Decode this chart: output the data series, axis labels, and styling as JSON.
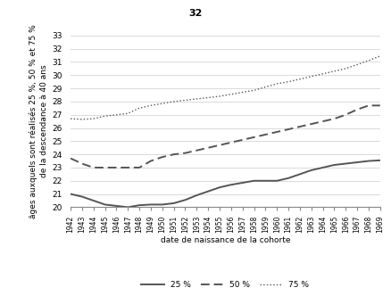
{
  "years": [
    1942,
    1943,
    1944,
    1945,
    1946,
    1947,
    1948,
    1949,
    1950,
    1951,
    1952,
    1953,
    1954,
    1955,
    1956,
    1957,
    1958,
    1959,
    1960,
    1961,
    1962,
    1963,
    1964,
    1965,
    1966,
    1967,
    1968,
    1969
  ],
  "p25": [
    21.0,
    20.8,
    20.5,
    20.2,
    20.1,
    20.0,
    20.15,
    20.2,
    20.2,
    20.3,
    20.55,
    20.9,
    21.2,
    21.5,
    21.7,
    21.85,
    22.0,
    22.0,
    22.0,
    22.2,
    22.5,
    22.8,
    23.0,
    23.2,
    23.3,
    23.4,
    23.5,
    23.55
  ],
  "p50": [
    23.7,
    23.3,
    23.0,
    23.0,
    23.0,
    23.0,
    23.0,
    23.5,
    23.8,
    24.0,
    24.1,
    24.3,
    24.5,
    24.7,
    24.9,
    25.1,
    25.3,
    25.5,
    25.7,
    25.9,
    26.1,
    26.3,
    26.5,
    26.7,
    27.0,
    27.4,
    27.7,
    27.7
  ],
  "p75": [
    26.7,
    26.65,
    26.7,
    26.9,
    27.0,
    27.1,
    27.5,
    27.7,
    27.85,
    28.0,
    28.1,
    28.2,
    28.3,
    28.4,
    28.55,
    28.7,
    28.85,
    29.1,
    29.35,
    29.5,
    29.7,
    29.9,
    30.1,
    30.3,
    30.5,
    30.8,
    31.1,
    31.45
  ],
  "ylim": [
    20,
    33
  ],
  "yticks": [
    20,
    21,
    22,
    23,
    24,
    25,
    26,
    27,
    28,
    29,
    30,
    31,
    32,
    33
  ],
  "xlabel": "date de naissance de la cohorte",
  "ylabel_line1": "âges auxquels sont réalisés 25 %, 50 % et 75 %",
  "ylabel_line2": "de la descendance à 40 ans",
  "legend_labels": [
    "25 %",
    "50 %",
    "75 %"
  ],
  "line_color": "#555555",
  "title": "32",
  "background_color": "#ffffff",
  "grid_color": "#cccccc",
  "xtick_fontsize": 5.5,
  "ytick_fontsize": 6.5,
  "label_fontsize": 6.5,
  "title_fontsize": 8
}
